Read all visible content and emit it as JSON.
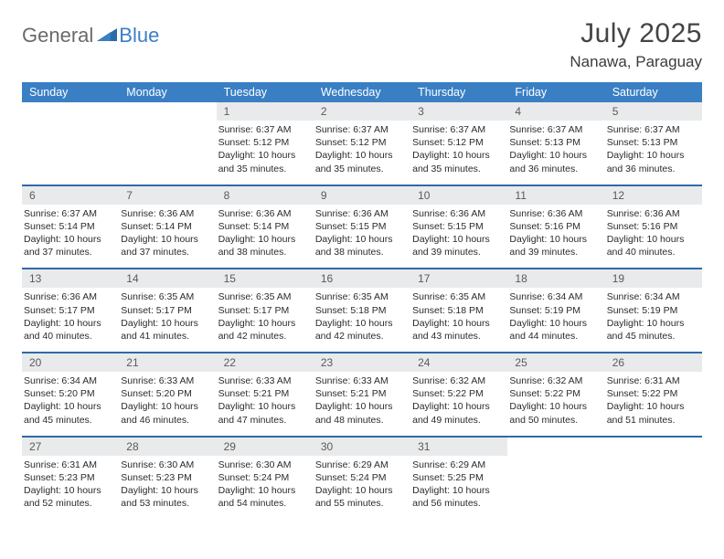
{
  "brand": {
    "part1": "General",
    "part2": "Blue"
  },
  "title": "July 2025",
  "location": "Nanawa, Paraguay",
  "colors": {
    "header_bg": "#3a7fc4",
    "header_text": "#ffffff",
    "daynum_bg": "#e9eaeb",
    "daynum_text": "#5a5a5a",
    "rule": "#2f6aa8",
    "body_text": "#2b2b2b",
    "logo_gray": "#6a6a6a",
    "logo_blue": "#3a7fc4"
  },
  "dow": [
    "Sunday",
    "Monday",
    "Tuesday",
    "Wednesday",
    "Thursday",
    "Friday",
    "Saturday"
  ],
  "weeks": [
    [
      null,
      null,
      {
        "n": "1",
        "sr": "6:37 AM",
        "ss": "5:12 PM",
        "dl": "10 hours and 35 minutes."
      },
      {
        "n": "2",
        "sr": "6:37 AM",
        "ss": "5:12 PM",
        "dl": "10 hours and 35 minutes."
      },
      {
        "n": "3",
        "sr": "6:37 AM",
        "ss": "5:12 PM",
        "dl": "10 hours and 35 minutes."
      },
      {
        "n": "4",
        "sr": "6:37 AM",
        "ss": "5:13 PM",
        "dl": "10 hours and 36 minutes."
      },
      {
        "n": "5",
        "sr": "6:37 AM",
        "ss": "5:13 PM",
        "dl": "10 hours and 36 minutes."
      }
    ],
    [
      {
        "n": "6",
        "sr": "6:37 AM",
        "ss": "5:14 PM",
        "dl": "10 hours and 37 minutes."
      },
      {
        "n": "7",
        "sr": "6:36 AM",
        "ss": "5:14 PM",
        "dl": "10 hours and 37 minutes."
      },
      {
        "n": "8",
        "sr": "6:36 AM",
        "ss": "5:14 PM",
        "dl": "10 hours and 38 minutes."
      },
      {
        "n": "9",
        "sr": "6:36 AM",
        "ss": "5:15 PM",
        "dl": "10 hours and 38 minutes."
      },
      {
        "n": "10",
        "sr": "6:36 AM",
        "ss": "5:15 PM",
        "dl": "10 hours and 39 minutes."
      },
      {
        "n": "11",
        "sr": "6:36 AM",
        "ss": "5:16 PM",
        "dl": "10 hours and 39 minutes."
      },
      {
        "n": "12",
        "sr": "6:36 AM",
        "ss": "5:16 PM",
        "dl": "10 hours and 40 minutes."
      }
    ],
    [
      {
        "n": "13",
        "sr": "6:36 AM",
        "ss": "5:17 PM",
        "dl": "10 hours and 40 minutes."
      },
      {
        "n": "14",
        "sr": "6:35 AM",
        "ss": "5:17 PM",
        "dl": "10 hours and 41 minutes."
      },
      {
        "n": "15",
        "sr": "6:35 AM",
        "ss": "5:17 PM",
        "dl": "10 hours and 42 minutes."
      },
      {
        "n": "16",
        "sr": "6:35 AM",
        "ss": "5:18 PM",
        "dl": "10 hours and 42 minutes."
      },
      {
        "n": "17",
        "sr": "6:35 AM",
        "ss": "5:18 PM",
        "dl": "10 hours and 43 minutes."
      },
      {
        "n": "18",
        "sr": "6:34 AM",
        "ss": "5:19 PM",
        "dl": "10 hours and 44 minutes."
      },
      {
        "n": "19",
        "sr": "6:34 AM",
        "ss": "5:19 PM",
        "dl": "10 hours and 45 minutes."
      }
    ],
    [
      {
        "n": "20",
        "sr": "6:34 AM",
        "ss": "5:20 PM",
        "dl": "10 hours and 45 minutes."
      },
      {
        "n": "21",
        "sr": "6:33 AM",
        "ss": "5:20 PM",
        "dl": "10 hours and 46 minutes."
      },
      {
        "n": "22",
        "sr": "6:33 AM",
        "ss": "5:21 PM",
        "dl": "10 hours and 47 minutes."
      },
      {
        "n": "23",
        "sr": "6:33 AM",
        "ss": "5:21 PM",
        "dl": "10 hours and 48 minutes."
      },
      {
        "n": "24",
        "sr": "6:32 AM",
        "ss": "5:22 PM",
        "dl": "10 hours and 49 minutes."
      },
      {
        "n": "25",
        "sr": "6:32 AM",
        "ss": "5:22 PM",
        "dl": "10 hours and 50 minutes."
      },
      {
        "n": "26",
        "sr": "6:31 AM",
        "ss": "5:22 PM",
        "dl": "10 hours and 51 minutes."
      }
    ],
    [
      {
        "n": "27",
        "sr": "6:31 AM",
        "ss": "5:23 PM",
        "dl": "10 hours and 52 minutes."
      },
      {
        "n": "28",
        "sr": "6:30 AM",
        "ss": "5:23 PM",
        "dl": "10 hours and 53 minutes."
      },
      {
        "n": "29",
        "sr": "6:30 AM",
        "ss": "5:24 PM",
        "dl": "10 hours and 54 minutes."
      },
      {
        "n": "30",
        "sr": "6:29 AM",
        "ss": "5:24 PM",
        "dl": "10 hours and 55 minutes."
      },
      {
        "n": "31",
        "sr": "6:29 AM",
        "ss": "5:25 PM",
        "dl": "10 hours and 56 minutes."
      },
      null,
      null
    ]
  ],
  "labels": {
    "sunrise": "Sunrise:",
    "sunset": "Sunset:",
    "daylight": "Daylight:"
  }
}
